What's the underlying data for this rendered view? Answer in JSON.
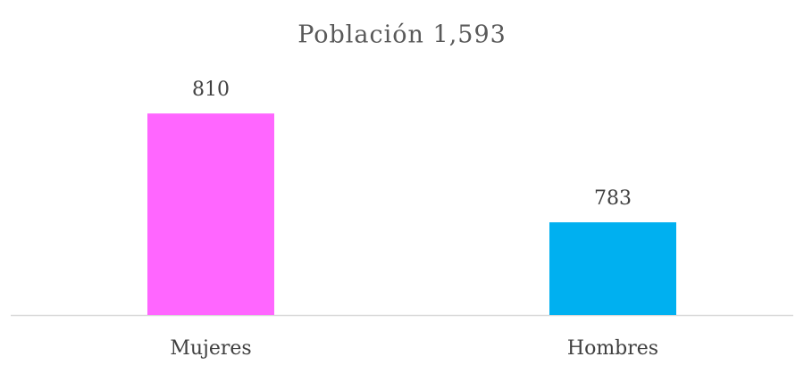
{
  "chart_data": {
    "type": "bar",
    "title": "Población 1,593",
    "categories": [
      "Mujeres",
      "Hombres"
    ],
    "values": [
      810,
      783
    ],
    "colors": [
      "#ff66ff",
      "#00b0f0"
    ],
    "ylim": [
      760,
      820
    ]
  }
}
